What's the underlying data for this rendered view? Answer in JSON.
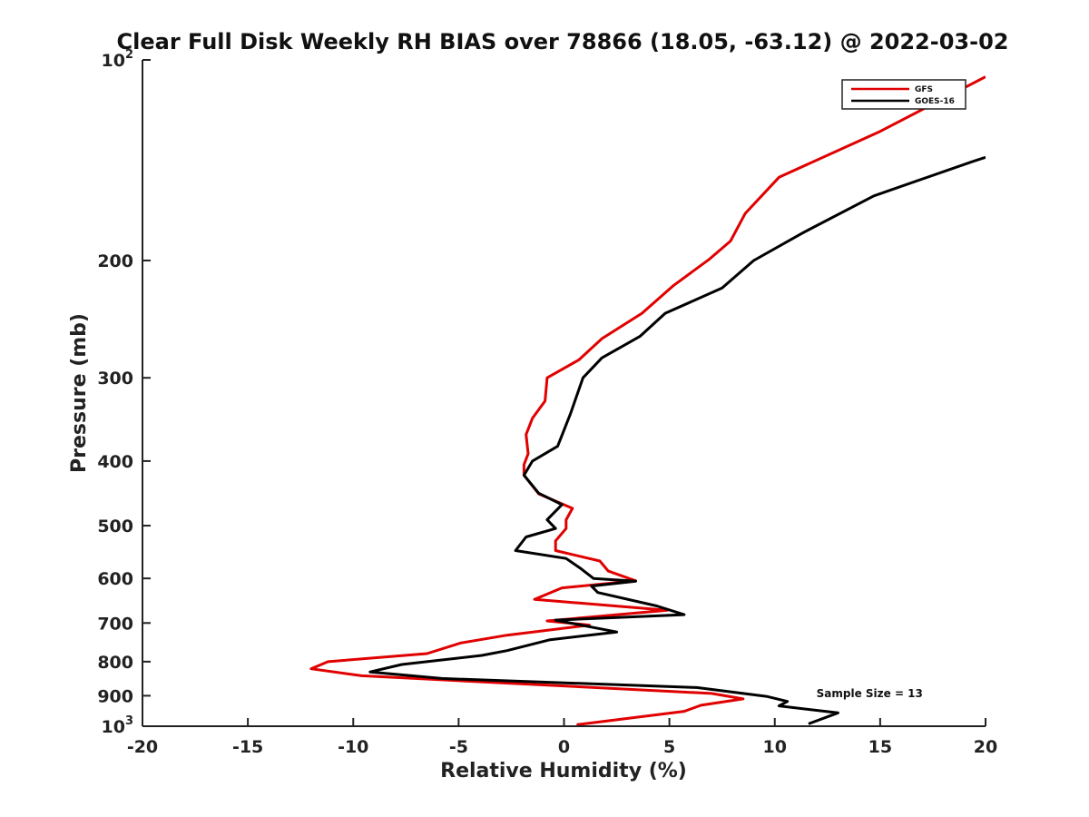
{
  "chart_data": {
    "type": "line",
    "title": "Clear Full Disk Weekly RH BIAS over 78866 (18.05, -63.12) @ 2022-03-02",
    "xlabel": "Relative Humidity (%)",
    "ylabel": "Pressure (mb)",
    "xlim": [
      -20,
      20
    ],
    "ylim": [
      100,
      1000
    ],
    "y_scale": "log",
    "y_reversed": true,
    "grid": false,
    "legend_position": "top-right",
    "x_ticks": [
      "-20",
      "-15",
      "-10",
      "-5",
      "0",
      "5",
      "10",
      "15",
      "20"
    ],
    "y_ticks": [
      {
        "value": 100,
        "base": "10",
        "exp": "2"
      },
      {
        "value": 200,
        "label": "200"
      },
      {
        "value": 300,
        "label": "300"
      },
      {
        "value": 400,
        "label": "400"
      },
      {
        "value": 500,
        "label": "500"
      },
      {
        "value": 600,
        "label": "600"
      },
      {
        "value": 700,
        "label": "700"
      },
      {
        "value": 800,
        "label": "800"
      },
      {
        "value": 900,
        "label": "900"
      },
      {
        "value": 1000,
        "base": "10",
        "exp": "3"
      }
    ],
    "series": [
      {
        "name": "GFS",
        "color": "#e00000",
        "points": [
          [
            20.0,
            106
          ],
          [
            15.0,
            128
          ],
          [
            10.2,
            150
          ],
          [
            8.6,
            170
          ],
          [
            7.9,
            187
          ],
          [
            6.9,
            199
          ],
          [
            5.2,
            218
          ],
          [
            3.7,
            240
          ],
          [
            1.8,
            262
          ],
          [
            0.7,
            282
          ],
          [
            -0.8,
            300
          ],
          [
            -0.9,
            325
          ],
          [
            -1.5,
            345
          ],
          [
            -1.8,
            365
          ],
          [
            -1.7,
            390
          ],
          [
            -1.9,
            405
          ],
          [
            -1.9,
            420
          ],
          [
            -1.2,
            448
          ],
          [
            0.4,
            471
          ],
          [
            0.1,
            490
          ],
          [
            0.1,
            505
          ],
          [
            -0.4,
            527
          ],
          [
            -0.4,
            545
          ],
          [
            1.7,
            565
          ],
          [
            2.1,
            585
          ],
          [
            3.4,
            605
          ],
          [
            -0.1,
            620
          ],
          [
            -1.4,
            645
          ],
          [
            4.9,
            670
          ],
          [
            -0.8,
            695
          ],
          [
            1.2,
            705
          ],
          [
            -2.7,
            730
          ],
          [
            -4.9,
            750
          ],
          [
            -6.5,
            778
          ],
          [
            -11.2,
            800
          ],
          [
            -12.0,
            820
          ],
          [
            -9.6,
            840
          ],
          [
            7.0,
            893
          ],
          [
            8.5,
            910
          ],
          [
            6.5,
            930
          ],
          [
            5.7,
            950
          ],
          [
            0.6,
            995
          ]
        ]
      },
      {
        "name": "GOES-16",
        "color": "#000000",
        "points": [
          [
            20.0,
            140
          ],
          [
            19.4,
            142
          ],
          [
            14.7,
            160
          ],
          [
            11.3,
            182
          ],
          [
            9.0,
            200
          ],
          [
            7.5,
            220
          ],
          [
            4.8,
            240
          ],
          [
            3.6,
            260
          ],
          [
            1.8,
            280
          ],
          [
            0.9,
            300
          ],
          [
            0.3,
            340
          ],
          [
            -0.3,
            380
          ],
          [
            -1.5,
            400
          ],
          [
            -1.9,
            420
          ],
          [
            -1.2,
            447
          ],
          [
            -0.1,
            465
          ],
          [
            -0.8,
            490
          ],
          [
            -0.4,
            505
          ],
          [
            -1.8,
            520
          ],
          [
            -2.3,
            545
          ],
          [
            0.1,
            560
          ],
          [
            0.8,
            580
          ],
          [
            1.4,
            600
          ],
          [
            3.4,
            606
          ],
          [
            1.3,
            616
          ],
          [
            1.6,
            630
          ],
          [
            4.4,
            660
          ],
          [
            5.7,
            680
          ],
          [
            -0.4,
            693
          ],
          [
            1.5,
            712
          ],
          [
            2.5,
            722
          ],
          [
            -0.7,
            742
          ],
          [
            -2.7,
            770
          ],
          [
            -3.9,
            783
          ],
          [
            -7.7,
            808
          ],
          [
            -9.2,
            829
          ],
          [
            -5.8,
            848
          ],
          [
            6.3,
            875
          ],
          [
            9.6,
            902
          ],
          [
            10.6,
            918
          ],
          [
            10.2,
            932
          ],
          [
            13.0,
            955
          ],
          [
            11.6,
            992
          ]
        ]
      }
    ],
    "annotations": [
      {
        "text": "Sample Size = 13",
        "x": 14.5,
        "y": 905
      }
    ]
  }
}
